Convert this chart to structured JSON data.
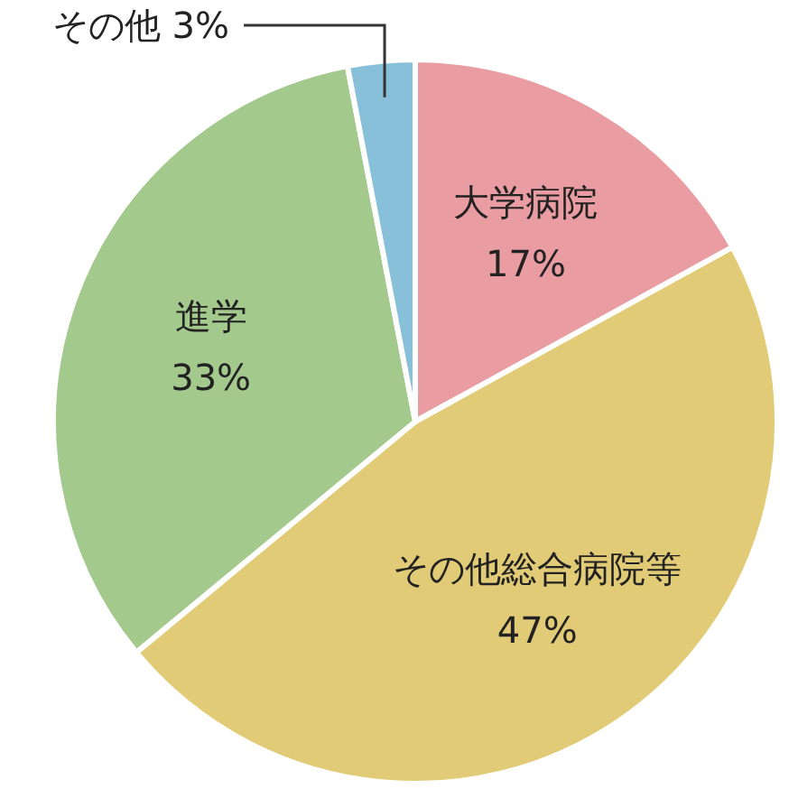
{
  "chart_data": {
    "type": "pie",
    "categories": [
      "大学病院",
      "その他総合病院等",
      "進学",
      "その他"
    ],
    "values": [
      17,
      47,
      33,
      3
    ],
    "value_labels": [
      "17%",
      "47%",
      "33%",
      "3%"
    ],
    "colors": [
      "#e99ca1",
      "#e2cb76",
      "#a3c98d",
      "#88c0d9"
    ],
    "legend": false
  }
}
